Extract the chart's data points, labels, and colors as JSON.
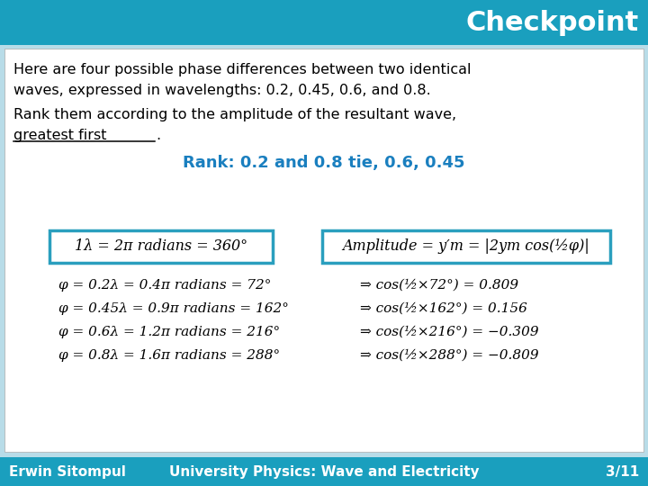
{
  "title": "Checkpoint",
  "title_bg_color": "#1a9fbe",
  "title_text_color": "#ffffff",
  "slide_bg_color": "#b8dce8",
  "footer_bg_color": "#1a9fbe",
  "footer_left": "Erwin Sitompul",
  "footer_right": "University Physics: Wave and Electricity",
  "footer_page": "3/11",
  "footer_text_color": "#ffffff",
  "body_text_color": "#000000",
  "rank_text_color": "#1a7fbf",
  "box_border_color": "#2a9fbe",
  "line1": "Here are four possible phase differences between two identical",
  "line2": "waves, expressed in wavelengths: 0.2, 0.45, 0.6, and 0.8.",
  "line3": "Rank them according to the amplitude of the resultant wave,",
  "line4_normal": "greatest first",
  "line4_end": ".",
  "rank_line": "Rank: 0.2 and 0.8 tie, 0.6, 0.45",
  "box1_text": "1λ = 2π radians = 360°",
  "box2_text": "Amplitude = y′m = |2ym cos(½φ)|",
  "eq1": "φ = 0.2λ = 0.4π radians = 72°",
  "eq2": "φ = 0.45λ = 0.9π radians = 162°",
  "eq3": "φ = 0.6λ = 1.2π radians = 216°",
  "eq4": "φ = 0.8λ = 1.6π radians = 288°",
  "res1": "⇒ cos(½×72°) = 0.809",
  "res2": "⇒ cos(½×162°) = 0.156",
  "res3": "⇒ cos(½×216°) = −0.309",
  "res4": "⇒ cos(½×288°) = −0.809"
}
